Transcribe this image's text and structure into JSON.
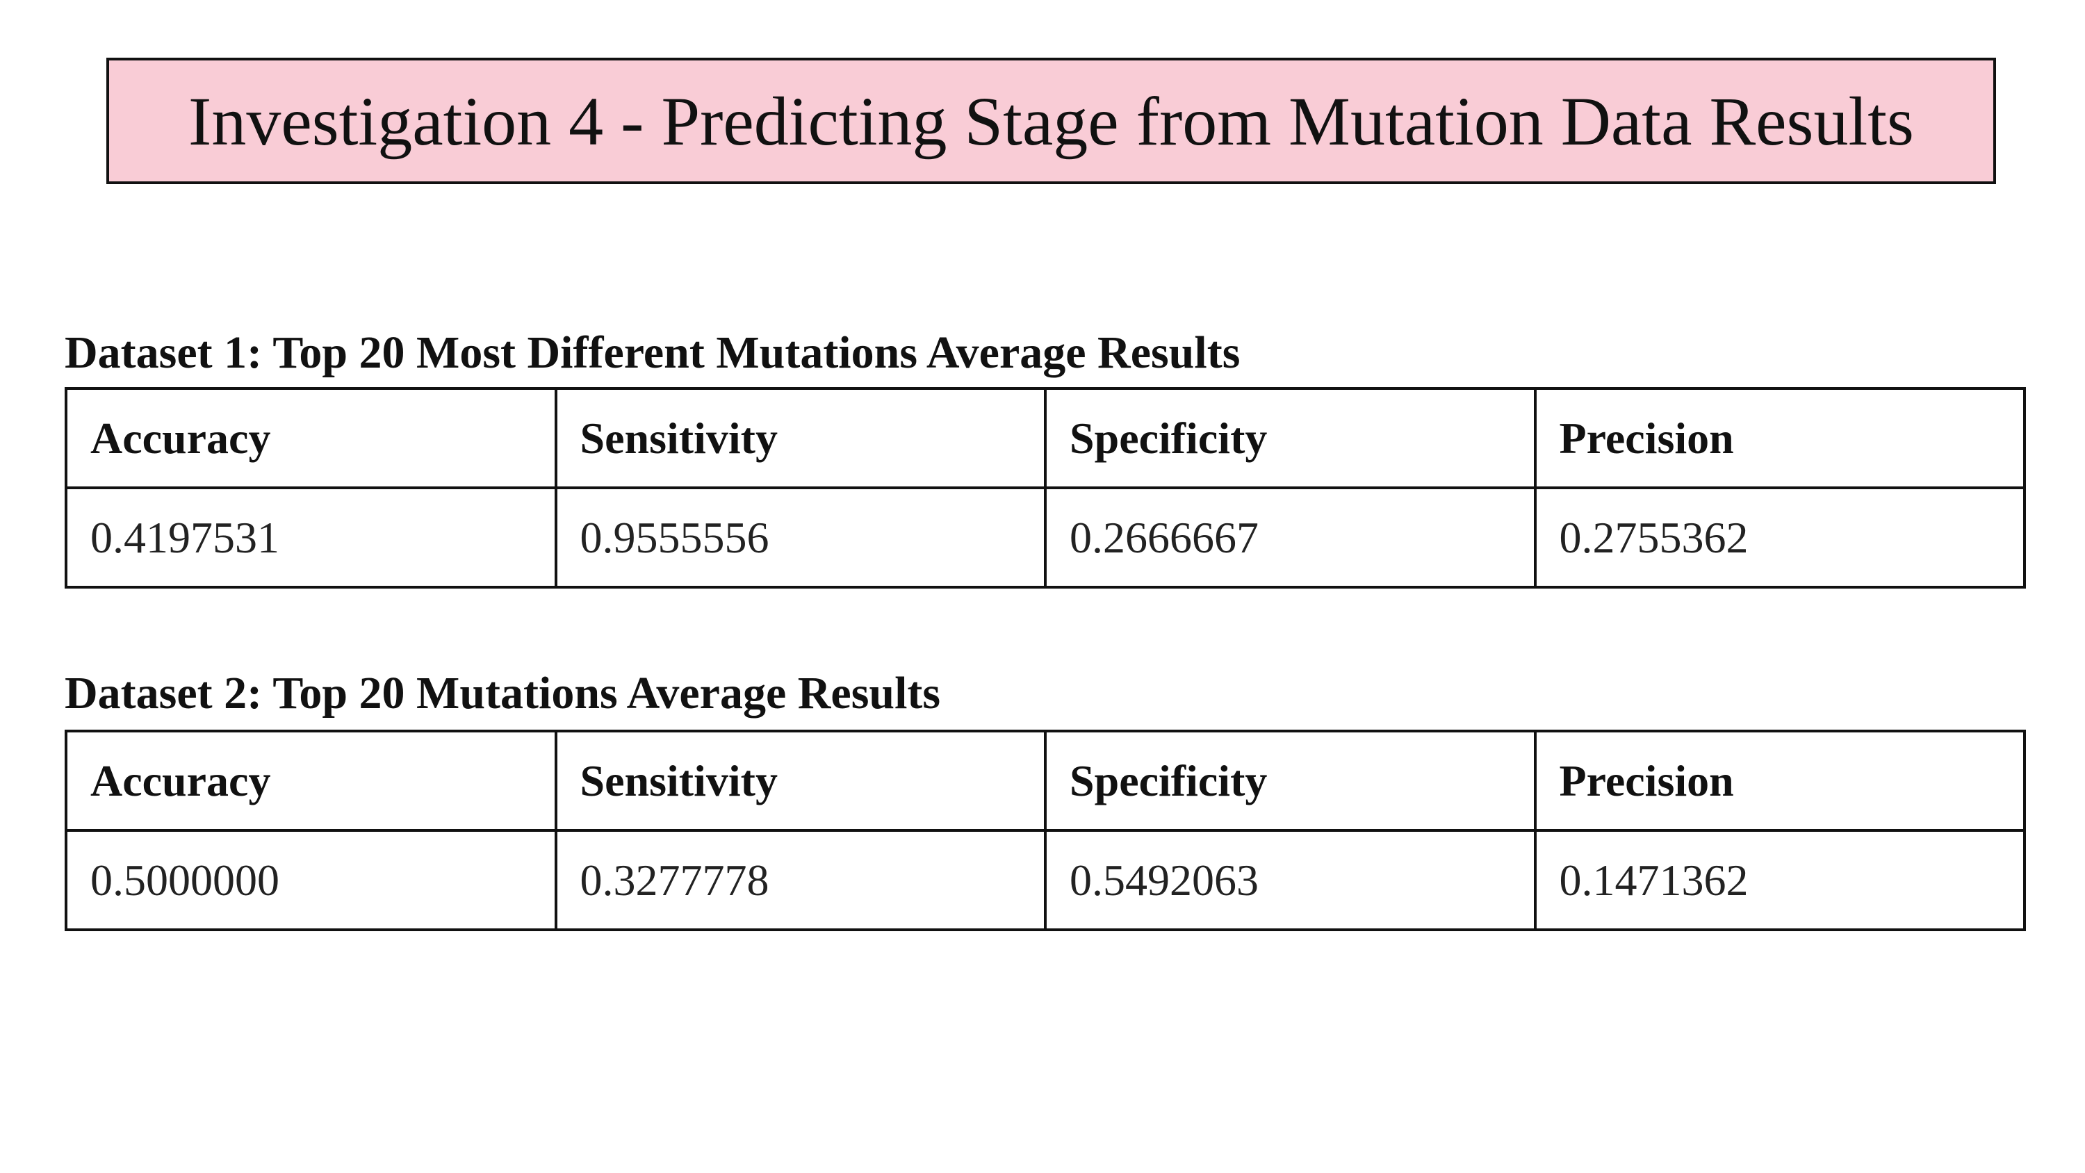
{
  "title": "Investigation 4 - Predicting Stage from Mutation Data Results",
  "tables": [
    {
      "caption": "Dataset 1: Top 20 Most Different Mutations Average Results",
      "header": [
        "Accuracy",
        "Sensitivity",
        "Specificity",
        "Precision"
      ],
      "rows": [
        [
          "0.4197531",
          "0.9555556",
          "0.2666667",
          "0.2755362"
        ]
      ]
    },
    {
      "caption": "Dataset 2: Top 20 Mutations Average Results",
      "header": [
        "Accuracy",
        "Sensitivity",
        "Specificity",
        "Precision"
      ],
      "rows": [
        [
          "0.5000000",
          "0.3277778",
          "0.5492063",
          "0.1471362"
        ]
      ]
    }
  ]
}
